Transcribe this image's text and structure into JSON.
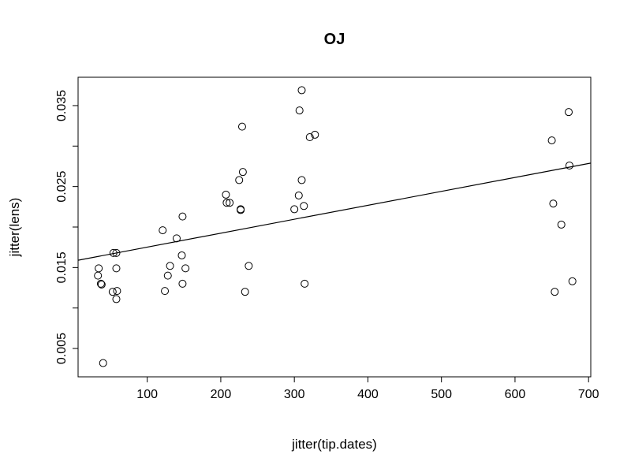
{
  "chart_data": {
    "type": "scatter",
    "title": "OJ",
    "xlabel": "jitter(tip.dates)",
    "ylabel": "jitter(lens)",
    "xlim": [
      6,
      703
    ],
    "ylim": [
      0.0015,
      0.0385
    ],
    "xticks": [
      100,
      200,
      300,
      400,
      500,
      600,
      700
    ],
    "xtick_labels": [
      "100",
      "200",
      "300",
      "400",
      "500",
      "600",
      "700"
    ],
    "yticks": [
      0.005,
      0.01,
      0.015,
      0.02,
      0.025,
      0.03,
      0.035
    ],
    "ytick_labels": [
      "0.005",
      "",
      "0.015",
      "",
      "0.025",
      "",
      "0.035"
    ],
    "grid": false,
    "fit_line": {
      "x": [
        6,
        703
      ],
      "y": [
        0.0159,
        0.0279
      ]
    },
    "points": [
      {
        "x": 34,
        "y": 0.0149
      },
      {
        "x": 33,
        "y": 0.014
      },
      {
        "x": 37,
        "y": 0.013
      },
      {
        "x": 38,
        "y": 0.0129
      },
      {
        "x": 40,
        "y": 0.0032
      },
      {
        "x": 54,
        "y": 0.0168
      },
      {
        "x": 58,
        "y": 0.0168
      },
      {
        "x": 58,
        "y": 0.0149
      },
      {
        "x": 53,
        "y": 0.012
      },
      {
        "x": 59,
        "y": 0.0121
      },
      {
        "x": 58,
        "y": 0.0111
      },
      {
        "x": 121,
        "y": 0.0196
      },
      {
        "x": 140,
        "y": 0.0186
      },
      {
        "x": 148,
        "y": 0.0213
      },
      {
        "x": 147,
        "y": 0.0165
      },
      {
        "x": 131,
        "y": 0.0152
      },
      {
        "x": 152,
        "y": 0.0149
      },
      {
        "x": 128,
        "y": 0.014
      },
      {
        "x": 148,
        "y": 0.013
      },
      {
        "x": 124,
        "y": 0.0121
      },
      {
        "x": 207,
        "y": 0.024
      },
      {
        "x": 208,
        "y": 0.023
      },
      {
        "x": 212,
        "y": 0.023
      },
      {
        "x": 225,
        "y": 0.0258
      },
      {
        "x": 230,
        "y": 0.0268
      },
      {
        "x": 229,
        "y": 0.0324
      },
      {
        "x": 227,
        "y": 0.0222
      },
      {
        "x": 227,
        "y": 0.0221
      },
      {
        "x": 238,
        "y": 0.0152
      },
      {
        "x": 233,
        "y": 0.012
      },
      {
        "x": 310,
        "y": 0.0369
      },
      {
        "x": 307,
        "y": 0.0344
      },
      {
        "x": 328,
        "y": 0.0314
      },
      {
        "x": 321,
        "y": 0.0311
      },
      {
        "x": 310,
        "y": 0.0258
      },
      {
        "x": 306,
        "y": 0.0239
      },
      {
        "x": 313,
        "y": 0.0226
      },
      {
        "x": 300,
        "y": 0.0222
      },
      {
        "x": 314,
        "y": 0.013
      },
      {
        "x": 673,
        "y": 0.0342
      },
      {
        "x": 650,
        "y": 0.0307
      },
      {
        "x": 674,
        "y": 0.0276
      },
      {
        "x": 652,
        "y": 0.0229
      },
      {
        "x": 663,
        "y": 0.0203
      },
      {
        "x": 678,
        "y": 0.0133
      },
      {
        "x": 654,
        "y": 0.012
      }
    ]
  }
}
